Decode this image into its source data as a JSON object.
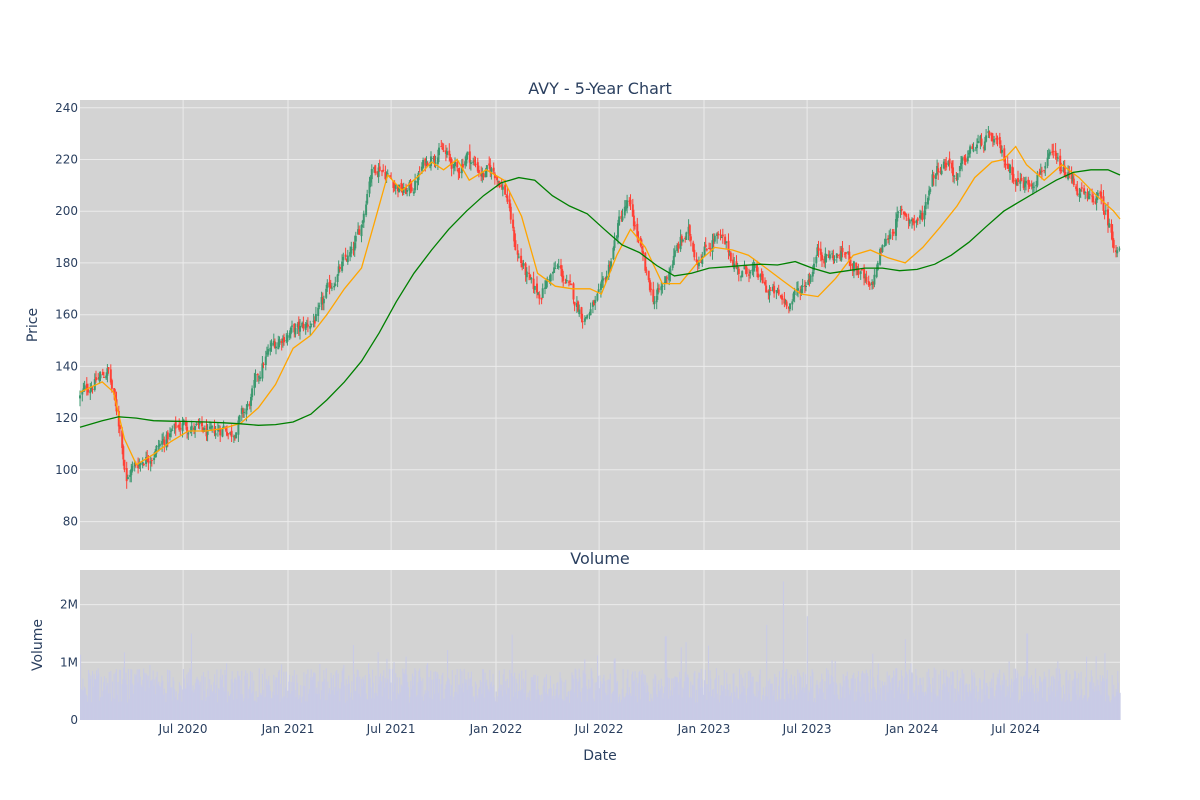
{
  "chart_data": [
    {
      "type": "candlestick",
      "title": "AVY - 5-Year Chart",
      "xlabel": "",
      "ylabel": "Price",
      "ylim": [
        69,
        243
      ],
      "yticks": [
        80,
        100,
        120,
        140,
        160,
        180,
        200,
        220,
        240
      ],
      "xlim": [
        "2020-01-02",
        "2024-12-31"
      ],
      "grid": true,
      "colors": {
        "up": "#3d9970",
        "down": "#ff4136",
        "ma_short": "#ffa500",
        "ma_long": "#008000",
        "background": "#d3d3d3"
      },
      "close_series": {
        "x": [
          "2020-01-02",
          "2020-01-20",
          "2020-02-10",
          "2020-02-20",
          "2020-03-01",
          "2020-03-15",
          "2020-03-23",
          "2020-04-01",
          "2020-04-20",
          "2020-05-10",
          "2020-06-01",
          "2020-06-20",
          "2020-07-01",
          "2020-07-20",
          "2020-08-01",
          "2020-08-20",
          "2020-09-10",
          "2020-09-25",
          "2020-10-10",
          "2020-10-25",
          "2020-11-05",
          "2020-11-20",
          "2020-12-05",
          "2020-12-20",
          "2021-01-01",
          "2021-01-20",
          "2021-02-05",
          "2021-02-25",
          "2021-03-10",
          "2021-03-25",
          "2021-04-10",
          "2021-04-25",
          "2021-05-10",
          "2021-05-25",
          "2021-06-10",
          "2021-06-25",
          "2021-07-10",
          "2021-07-25",
          "2021-08-10",
          "2021-08-25",
          "2021-09-10",
          "2021-09-25",
          "2021-10-10",
          "2021-10-25",
          "2021-11-10",
          "2021-11-25",
          "2021-12-10",
          "2021-12-25",
          "2022-01-05",
          "2022-01-20",
          "2022-02-05",
          "2022-02-20",
          "2022-03-05",
          "2022-03-20",
          "2022-04-05",
          "2022-04-20",
          "2022-05-05",
          "2022-05-20",
          "2022-06-05",
          "2022-06-20",
          "2022-07-05",
          "2022-07-20",
          "2022-08-05",
          "2022-08-20",
          "2022-09-05",
          "2022-09-20",
          "2022-10-05",
          "2022-10-20",
          "2022-11-05",
          "2022-11-20",
          "2022-12-05",
          "2022-12-20",
          "2023-01-05",
          "2023-01-20",
          "2023-02-05",
          "2023-02-20",
          "2023-03-05",
          "2023-03-20",
          "2023-04-05",
          "2023-04-20",
          "2023-05-05",
          "2023-05-20",
          "2023-06-05",
          "2023-06-20",
          "2023-07-05",
          "2023-07-20",
          "2023-08-05",
          "2023-08-20",
          "2023-09-05",
          "2023-09-20",
          "2023-10-05",
          "2023-10-20",
          "2023-11-05",
          "2023-11-20",
          "2023-12-05",
          "2023-12-20",
          "2024-01-05",
          "2024-01-20",
          "2024-02-05",
          "2024-02-20",
          "2024-03-05",
          "2024-03-20",
          "2024-04-05",
          "2024-04-20",
          "2024-05-05",
          "2024-05-20",
          "2024-06-05",
          "2024-06-20",
          "2024-07-05",
          "2024-07-20",
          "2024-08-05",
          "2024-08-20",
          "2024-09-05",
          "2024-09-20",
          "2024-10-05",
          "2024-10-20",
          "2024-11-05",
          "2024-11-20",
          "2024-12-05",
          "2024-12-20",
          "2024-12-31"
        ],
        "y": [
          128,
          133,
          136,
          139,
          128,
          113,
          95,
          100,
          104,
          107,
          112,
          116,
          118,
          116,
          115,
          113,
          117,
          114,
          120,
          125,
          133,
          142,
          148,
          151,
          153,
          154,
          156,
          160,
          168,
          175,
          180,
          184,
          195,
          215,
          218,
          214,
          210,
          207,
          210,
          217,
          222,
          224,
          220,
          215,
          222,
          218,
          214,
          216,
          213,
          206,
          185,
          177,
          170,
          168,
          175,
          178,
          172,
          165,
          159,
          163,
          168,
          180,
          196,
          203,
          192,
          176,
          166,
          170,
          180,
          188,
          191,
          182,
          186,
          190,
          187,
          182,
          176,
          178,
          175,
          170,
          168,
          165,
          166,
          170,
          175,
          185,
          183,
          182,
          184,
          180,
          175,
          168,
          183,
          190,
          197,
          199,
          196,
          198,
          214,
          218,
          220,
          212,
          221,
          225,
          226,
          228,
          222,
          217,
          212,
          210,
          214,
          218,
          220,
          215,
          213,
          208,
          203,
          206,
          200,
          188,
          187
        ]
      },
      "ma20": {
        "x": [
          "2020-01-02",
          "2020-02-10",
          "2020-03-01",
          "2020-03-20",
          "2020-04-10",
          "2020-05-10",
          "2020-06-10",
          "2020-07-10",
          "2020-08-10",
          "2020-09-10",
          "2020-10-10",
          "2020-11-10",
          "2020-12-10",
          "2021-01-10",
          "2021-02-10",
          "2021-03-10",
          "2021-04-10",
          "2021-05-10",
          "2021-06-01",
          "2021-06-25",
          "2021-07-20",
          "2021-08-20",
          "2021-09-10",
          "2021-10-01",
          "2021-10-25",
          "2021-11-15",
          "2021-12-15",
          "2022-01-15",
          "2022-02-15",
          "2022-03-15",
          "2022-04-15",
          "2022-05-15",
          "2022-06-15",
          "2022-07-05",
          "2022-08-01",
          "2022-08-25",
          "2022-09-20",
          "2022-10-20",
          "2022-11-20",
          "2022-12-20",
          "2023-01-20",
          "2023-02-20",
          "2023-03-20",
          "2023-04-20",
          "2023-05-20",
          "2023-06-20",
          "2023-07-20",
          "2023-08-20",
          "2023-09-20",
          "2023-10-20",
          "2023-11-20",
          "2023-12-20",
          "2024-01-20",
          "2024-02-20",
          "2024-03-20",
          "2024-04-20",
          "2024-05-20",
          "2024-06-10",
          "2024-07-01",
          "2024-07-20",
          "2024-08-20",
          "2024-09-20",
          "2024-10-20",
          "2024-11-20",
          "2024-12-20",
          "2024-12-31"
        ],
        "y": [
          130,
          134,
          130,
          112,
          102,
          106,
          111,
          115,
          115,
          116,
          118,
          124,
          133,
          147,
          152,
          160,
          170,
          178,
          195,
          214,
          208,
          214,
          219,
          216,
          220,
          212,
          216,
          212,
          198,
          176,
          171,
          170,
          170,
          168,
          183,
          193,
          186,
          172,
          172,
          180,
          186,
          185,
          183,
          178,
          173,
          168,
          167,
          174,
          183,
          185,
          182,
          180,
          186,
          194,
          202,
          213,
          219,
          220,
          225,
          218,
          212,
          218,
          213,
          206,
          200,
          197
        ]
      },
      "ma200": {
        "x": [
          "2020-01-02",
          "2020-02-10",
          "2020-03-10",
          "2020-04-10",
          "2020-05-10",
          "2020-06-10",
          "2020-07-10",
          "2020-08-10",
          "2020-09-10",
          "2020-10-10",
          "2020-11-10",
          "2020-12-10",
          "2021-01-10",
          "2021-02-10",
          "2021-03-10",
          "2021-04-10",
          "2021-05-10",
          "2021-06-10",
          "2021-07-10",
          "2021-08-10",
          "2021-09-10",
          "2021-10-10",
          "2021-11-10",
          "2021-12-10",
          "2022-01-10",
          "2022-02-10",
          "2022-03-10",
          "2022-04-10",
          "2022-05-10",
          "2022-06-10",
          "2022-07-10",
          "2022-08-10",
          "2022-09-10",
          "2022-10-10",
          "2022-11-10",
          "2022-12-10",
          "2023-01-10",
          "2023-02-10",
          "2023-03-10",
          "2023-04-10",
          "2023-05-10",
          "2023-06-10",
          "2023-07-10",
          "2023-08-10",
          "2023-09-10",
          "2023-10-10",
          "2023-11-10",
          "2023-12-10",
          "2024-01-10",
          "2024-02-10",
          "2024-03-10",
          "2024-04-10",
          "2024-05-10",
          "2024-06-10",
          "2024-07-10",
          "2024-08-10",
          "2024-09-10",
          "2024-10-10",
          "2024-11-10",
          "2024-12-10",
          "2024-12-31"
        ],
        "y": [
          116.5,
          119,
          120.5,
          120,
          119,
          118.8,
          118.7,
          118.5,
          118.2,
          117.8,
          117.2,
          117.5,
          118.5,
          121.5,
          127,
          134,
          142,
          153,
          165,
          176,
          185,
          193,
          200,
          206,
          211,
          213,
          212,
          206,
          202,
          199,
          193,
          187,
          184,
          179,
          175,
          176,
          178,
          178.5,
          179,
          179.5,
          179.2,
          180.5,
          178,
          176,
          177,
          178,
          178,
          177,
          177.5,
          179.5,
          183,
          188,
          194,
          200,
          204,
          208,
          212,
          215,
          216,
          216,
          214
        ]
      }
    },
    {
      "type": "bar",
      "title": "Volume",
      "xlabel": "Date",
      "ylabel": "Volume",
      "ylim": [
        0,
        2.6
      ],
      "yticks": [
        0,
        1,
        2
      ],
      "ytick_labels": [
        "0",
        "1M",
        "2M"
      ],
      "xticks": [
        "2020-07-01",
        "2021-01-01",
        "2021-07-01",
        "2022-01-01",
        "2022-07-01",
        "2023-01-01",
        "2023-07-01",
        "2024-01-01",
        "2024-07-01"
      ],
      "xtick_labels": [
        "Jul 2020",
        "Jan 2021",
        "Jul 2021",
        "Jan 2022",
        "Jul 2022",
        "Jan 2023",
        "Jul 2023",
        "Jan 2024",
        "Jul 2024"
      ],
      "units": "millions of shares",
      "color": "#c9cbe6",
      "spikes": [
        {
          "x": "2023-05-19",
          "value": 2.4
        },
        {
          "x": "2023-06-30",
          "value": 1.8
        },
        {
          "x": "2023-04-20",
          "value": 1.65
        },
        {
          "x": "2024-07-20",
          "value": 1.5
        },
        {
          "x": "2020-07-15",
          "value": 1.5
        },
        {
          "x": "2022-01-28",
          "value": 1.48
        },
        {
          "x": "2022-10-25",
          "value": 1.45
        },
        {
          "x": "2023-12-20",
          "value": 1.4
        },
        {
          "x": "2022-11-30",
          "value": 1.35
        },
        {
          "x": "2021-04-25",
          "value": 1.3
        }
      ],
      "typical_range": [
        0.3,
        0.9
      ]
    }
  ]
}
